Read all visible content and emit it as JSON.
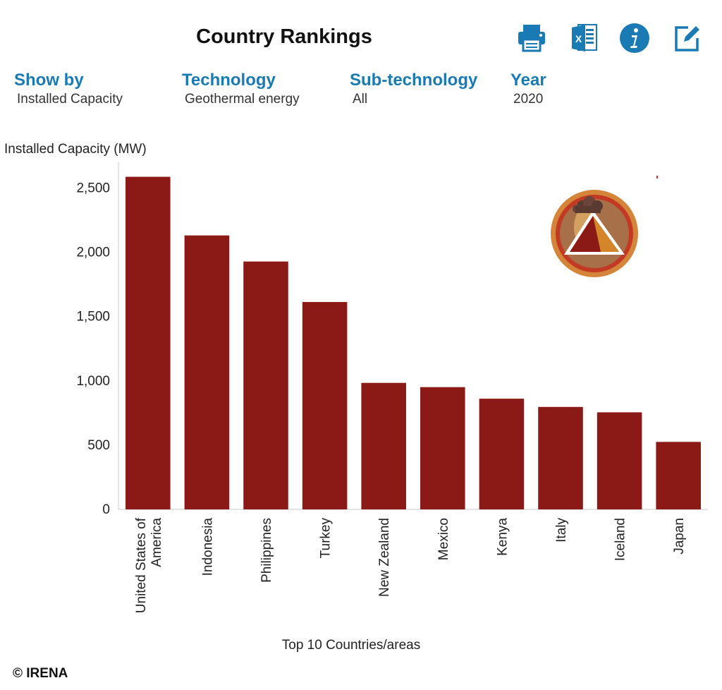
{
  "header": {
    "title": "Country Rankings"
  },
  "toolbar": [
    {
      "name": "print-icon"
    },
    {
      "name": "excel-icon"
    },
    {
      "name": "info-icon"
    },
    {
      "name": "edit-icon"
    }
  ],
  "filters": [
    {
      "label": "Show by",
      "value": "Installed Capacity"
    },
    {
      "label": "Technology",
      "value": "Geothermal energy"
    },
    {
      "label": "Sub-technology",
      "value": "All"
    },
    {
      "label": "Year",
      "value": "2020"
    }
  ],
  "colors": {
    "bar": "#8b1a16",
    "accent": "#1a7ab3"
  },
  "badge_icon": "geothermal-volcano-icon",
  "footer": {
    "copyright": "© IRENA"
  },
  "chart_data": {
    "type": "bar",
    "title": "",
    "ylabel": "Installed Capacity (MW)",
    "xlabel": "Top 10 Countries/areas",
    "ylim": [
      0,
      2700
    ],
    "yticks": [
      0,
      500,
      1000,
      1500,
      2000,
      2500
    ],
    "ytick_labels": [
      "0",
      "500",
      "1,000",
      "1,500",
      "2,000",
      "2,500"
    ],
    "grid": false,
    "categories": [
      "United States of America",
      "Indonesia",
      "Philippines",
      "Turkey",
      "New Zealand",
      "Mexico",
      "Kenya",
      "Italy",
      "Iceland",
      "Japan"
    ],
    "values": [
      2587,
      2131,
      1928,
      1613,
      984,
      951,
      861,
      797,
      755,
      525
    ]
  }
}
